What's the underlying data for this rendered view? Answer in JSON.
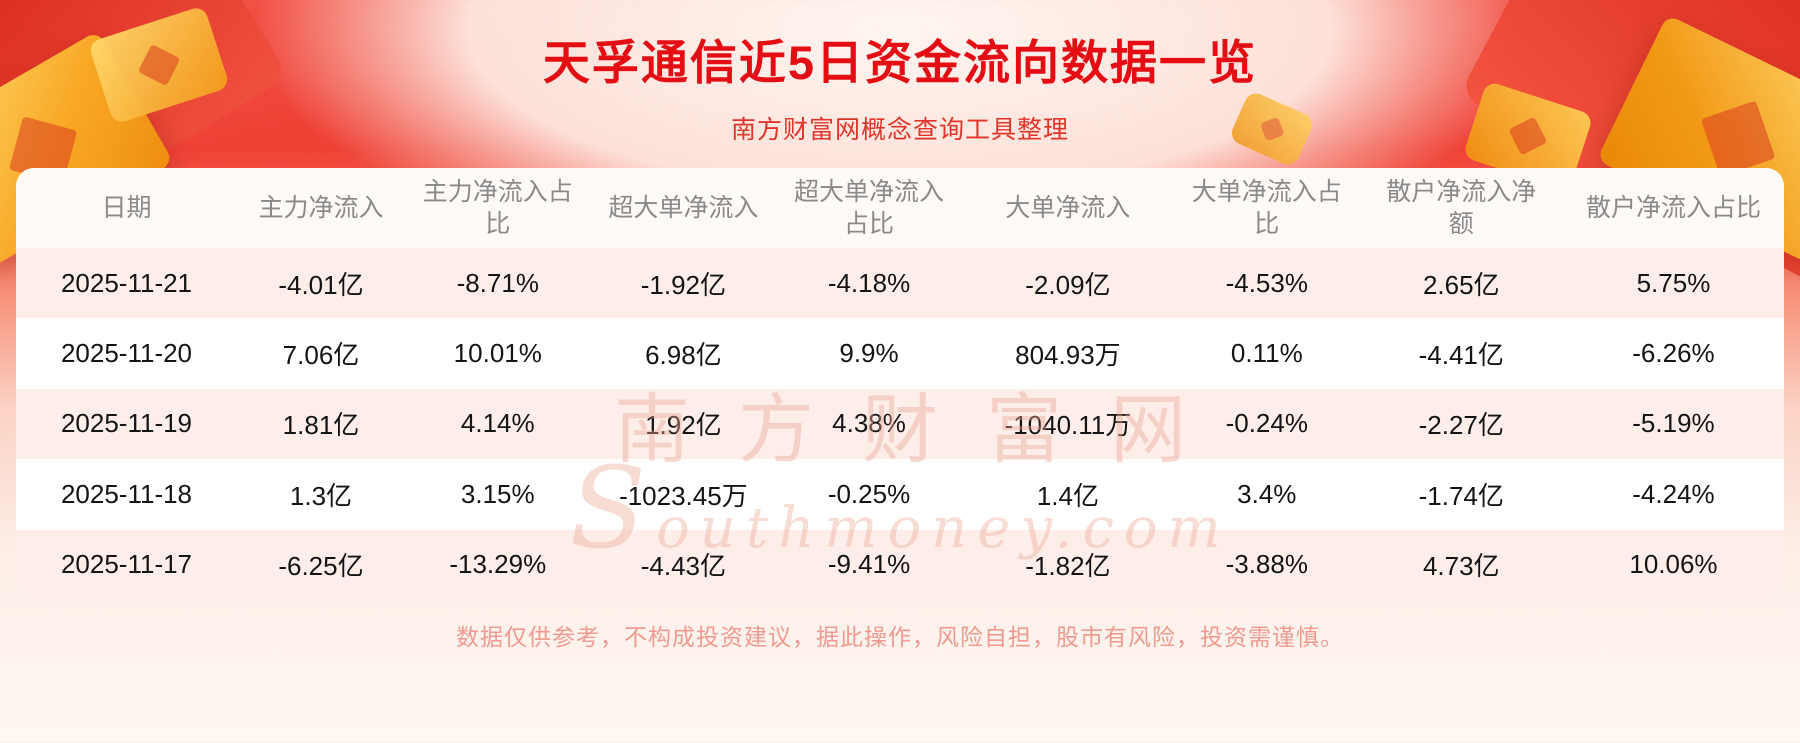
{
  "header": {
    "title": "天孚通信近5日资金流向数据一览",
    "subtitle": "南方财富网概念查询工具整理"
  },
  "chart_data": {
    "type": "table",
    "title": "天孚通信近5日资金流向数据一览",
    "columns": [
      "日期",
      "主力净流入",
      "主力净流入占比",
      "超大单净流入",
      "超大单净流入占比",
      "大单净流入",
      "大单净流入占比",
      "散户净流入净额",
      "散户净流入占比"
    ],
    "rows": [
      [
        "2025-11-21",
        "-4.01亿",
        "-8.71%",
        "-1.92亿",
        "-4.18%",
        "-2.09亿",
        "-4.53%",
        "2.65亿",
        "5.75%"
      ],
      [
        "2025-11-20",
        "7.06亿",
        "10.01%",
        "6.98亿",
        "9.9%",
        "804.93万",
        "0.11%",
        "-4.41亿",
        "-6.26%"
      ],
      [
        "2025-11-19",
        "1.81亿",
        "4.14%",
        "1.92亿",
        "4.38%",
        "-1040.11万",
        "-0.24%",
        "-2.27亿",
        "-5.19%"
      ],
      [
        "2025-11-18",
        "1.3亿",
        "3.15%",
        "-1023.45万",
        "-0.25%",
        "1.4亿",
        "3.4%",
        "-1.74亿",
        "-4.24%"
      ],
      [
        "2025-11-17",
        "-6.25亿",
        "-13.29%",
        "-4.43亿",
        "-9.41%",
        "-1.82亿",
        "-3.88%",
        "4.73亿",
        "10.06%"
      ]
    ],
    "layout": {
      "grid": false,
      "row_striping": true,
      "alignment": "center"
    }
  },
  "watermark": {
    "line1": "南方财富网",
    "line2": "Southmoney.com"
  },
  "footer": {
    "disclaimer": "数据仅供参考，不构成投资建议，据此操作，风险自担，股市有风险，投资需谨慎。"
  },
  "colors": {
    "title_red": "#e50d14",
    "banner_red": "#f04438",
    "row_pink": "#fdeeea",
    "header_gray": "#8a8a8a",
    "gold": "#f6a221",
    "disclaimer_pink": "#f09a90"
  }
}
